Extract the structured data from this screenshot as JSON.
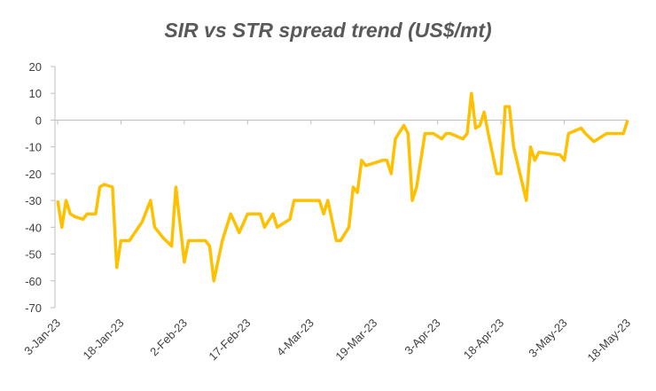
{
  "chart_data": {
    "type": "line",
    "title": "SIR vs STR spread trend (US$/mt)",
    "x": [
      "3-Jan-23",
      "4-Jan-23",
      "5-Jan-23",
      "6-Jan-23",
      "7-Jan-23",
      "9-Jan-23",
      "10-Jan-23",
      "12-Jan-23",
      "13-Jan-23",
      "14-Jan-23",
      "16-Jan-23",
      "17-Jan-23",
      "18-Jan-23",
      "20-Jan-23",
      "23-Jan-23",
      "25-Jan-23",
      "26-Jan-23",
      "28-Jan-23",
      "30-Jan-23",
      "31-Jan-23",
      "2-Feb-23",
      "3-Feb-23",
      "7-Feb-23",
      "8-Feb-23",
      "9-Feb-23",
      "11-Feb-23",
      "13-Feb-23",
      "15-Feb-23",
      "17-Feb-23",
      "20-Feb-23",
      "21-Feb-23",
      "23-Feb-23",
      "24-Feb-23",
      "27-Feb-23",
      "28-Feb-23",
      "6-Mar-23",
      "7-Mar-23",
      "8-Mar-23",
      "10-Mar-23",
      "11-Mar-23",
      "13-Mar-23",
      "14-Mar-23",
      "15-Mar-23",
      "16-Mar-23",
      "17-Mar-23",
      "21-Mar-23",
      "22-Mar-23",
      "23-Mar-23",
      "24-Mar-23",
      "26-Mar-23",
      "27-Mar-23",
      "28-Mar-23",
      "29-Mar-23",
      "31-Mar-23",
      "2-Apr-23",
      "4-Apr-23",
      "5-Apr-23",
      "6-Apr-23",
      "9-Apr-23",
      "10-Apr-23",
      "11-Apr-23",
      "12-Apr-23",
      "13-Apr-23",
      "14-Apr-23",
      "15-Apr-23",
      "17-Apr-23",
      "18-Apr-23",
      "19-Apr-23",
      "20-Apr-23",
      "21-Apr-23",
      "24-Apr-23",
      "25-Apr-23",
      "26-Apr-23",
      "27-Apr-23",
      "2-May-23",
      "3-May-23",
      "4-May-23",
      "7-May-23",
      "8-May-23",
      "10-May-23",
      "13-May-23",
      "17-May-23",
      "18-May-23"
    ],
    "series": [
      {
        "color": "#ffc000",
        "values": [
          -30,
          -40,
          -30,
          -35,
          -36,
          -37,
          -35,
          -35,
          -25,
          -24,
          -25,
          -55,
          -45,
          -45,
          -38,
          -30,
          -40,
          -44,
          -47,
          -25,
          -53,
          -45,
          -45,
          -47,
          -60,
          -45,
          -35,
          -42,
          -35,
          -35,
          -40,
          -35,
          -40,
          -37,
          -30,
          -30,
          -35,
          -30,
          -45,
          -45,
          -40,
          -25,
          -27,
          -15,
          -17,
          -15,
          -15,
          -20,
          -7,
          -2,
          -5,
          -30,
          -25,
          -5,
          -5,
          -7,
          -5,
          -5,
          -7,
          -5,
          10,
          -3,
          -2,
          3,
          -5,
          -20,
          -20,
          5,
          5,
          -10,
          -30,
          -10,
          -15,
          -12,
          -13,
          -15,
          -5,
          -3,
          -5,
          -8,
          -5,
          -5,
          0
        ]
      }
    ],
    "xlim": [
      "3-Jan-23",
      "18-May-23"
    ],
    "xticks": [
      "3-Jan-23",
      "18-Jan-23",
      "2-Feb-23",
      "17-Feb-23",
      "4-Mar-23",
      "19-Mar-23",
      "3-Apr-23",
      "18-Apr-23",
      "3-May-23",
      "18-May-23"
    ],
    "ylim": [
      -70,
      20
    ],
    "yticks": [
      -70,
      -60,
      -50,
      -40,
      -30,
      -20,
      -10,
      0,
      10,
      20
    ]
  }
}
